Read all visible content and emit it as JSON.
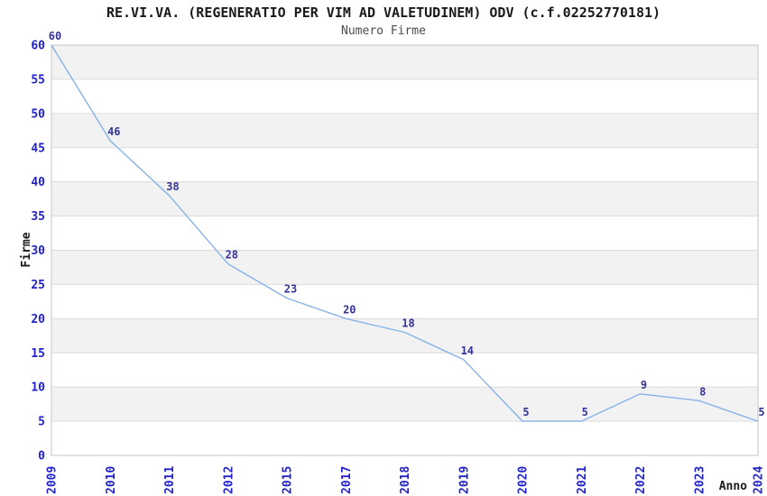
{
  "header": {
    "title": "RE.VI.VA. (REGENERATIO PER VIM AD VALETUDINEM) ODV (c.f.02252770181)",
    "subtitle": "Numero Firme"
  },
  "chart_data": {
    "type": "line",
    "title": "RE.VI.VA. (REGENERATIO PER VIM AD VALETUDINEM) ODV (c.f.02252770181)",
    "subtitle": "Numero Firme",
    "categories": [
      "2009",
      "2010",
      "2011",
      "2012",
      "2015",
      "2017",
      "2018",
      "2019",
      "2020",
      "2021",
      "2022",
      "2023",
      "2024"
    ],
    "values": [
      60,
      46,
      38,
      28,
      23,
      20,
      18,
      14,
      5,
      5,
      9,
      8,
      5
    ],
    "xlabel": "Anno",
    "ylabel": "Firme",
    "ylim": [
      0,
      60
    ],
    "ytick_step": 5,
    "yticks": [
      0,
      5,
      10,
      15,
      20,
      25,
      30,
      35,
      40,
      45,
      50,
      55,
      60
    ],
    "legend": "none",
    "grid": "horizontal gridlines with alternating shaded bands",
    "data_labels_visible": true,
    "colors": {
      "line": "#85b3e8",
      "tick_label": "#2222cc",
      "data_label": "#333399",
      "band_shaded": "#f2f2f2",
      "band_plain": "#ffffff",
      "gridline": "#dcdcdc",
      "plot_border": "#c6c6c6",
      "title": "#1a1a1a",
      "subtitle": "#4d4d4d",
      "axis_label": "#1a1a1a"
    }
  }
}
